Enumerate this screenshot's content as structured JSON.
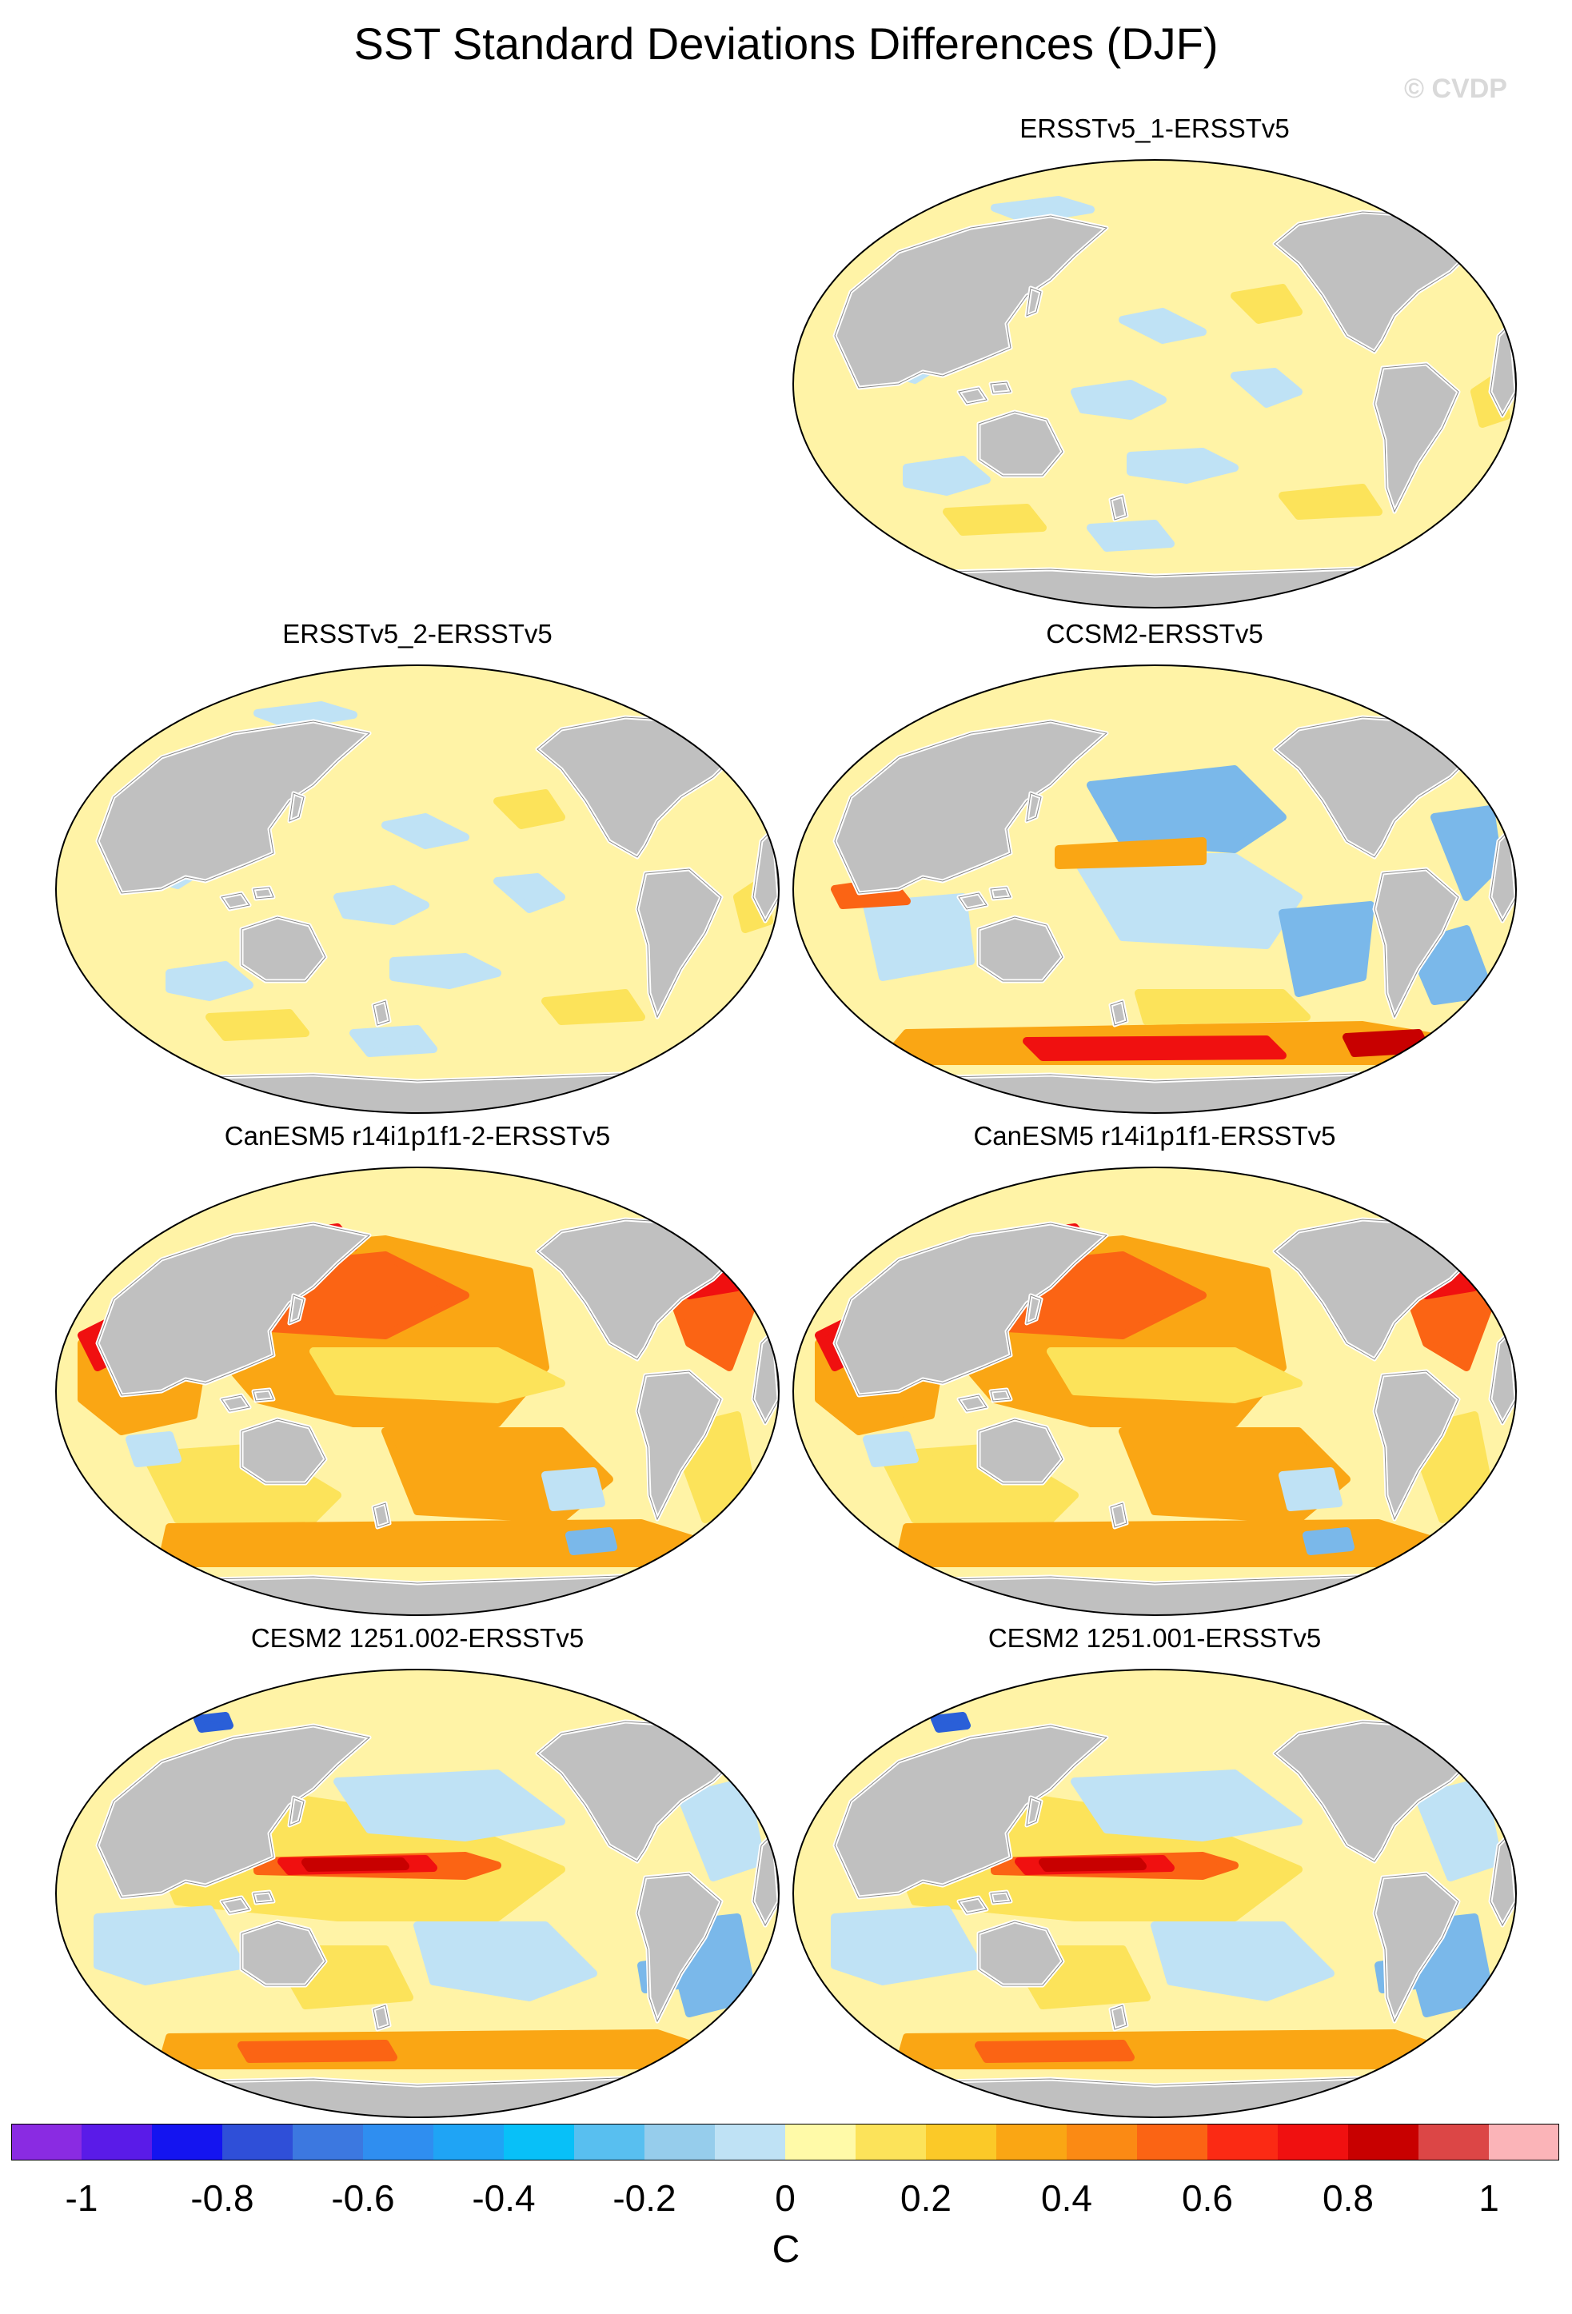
{
  "figure": {
    "title": "SST Standard Deviations Differences (DJF)",
    "credit": "© CVDP"
  },
  "panels": [
    {
      "id": "p1",
      "title": "ERSSTv5_1-ERSSTv5",
      "pattern": "neutral"
    },
    {
      "id": "p2",
      "title": "ERSSTv5_2-ERSSTv5",
      "pattern": "neutral"
    },
    {
      "id": "p3",
      "title": "CCSM2-ERSSTv5",
      "pattern": "ccsm2"
    },
    {
      "id": "p4",
      "title": "CanESM5 r14i1p1f1-2-ERSSTv5",
      "pattern": "canesm"
    },
    {
      "id": "p5",
      "title": "CanESM5 r14i1p1f1-ERSSTv5",
      "pattern": "canesm"
    },
    {
      "id": "p6",
      "title": "CESM2 1251.002-ERSSTv5",
      "pattern": "cesm"
    },
    {
      "id": "p7",
      "title": "CESM2 1251.001-ERSSTv5",
      "pattern": "cesm"
    }
  ],
  "colorbar": {
    "unit": "C",
    "ticks": [
      "-1",
      "-0.8",
      "-0.6",
      "-0.4",
      "-0.2",
      "0",
      "0.2",
      "0.4",
      "0.6",
      "0.8",
      "1"
    ],
    "colors": [
      "#8a2be2",
      "#5a1be8",
      "#1414f0",
      "#2f4fd8",
      "#3c78e0",
      "#2f8ef0",
      "#1fa4f5",
      "#08c0f8",
      "#58bff0",
      "#96cdec",
      "#bfe2f5",
      "#fffaa8",
      "#fce35a",
      "#fbc928",
      "#faa614",
      "#fb8a14",
      "#fb6414",
      "#fb2a14",
      "#f01010",
      "#c80000",
      "#dc4646",
      "#fbb4b8"
    ]
  },
  "palette": {
    "land": "#c0c0c0",
    "ocean_neutral": "#fff3a6",
    "light_blue": "#bfe2f5",
    "blue": "#7ab8ea",
    "dark_blue": "#2a5fd8",
    "yellow": "#fce35a",
    "orange": "#faa614",
    "dark_orange": "#fb6414",
    "red": "#f01010",
    "dark_red": "#c80000",
    "pink": "#fbb4b8"
  }
}
